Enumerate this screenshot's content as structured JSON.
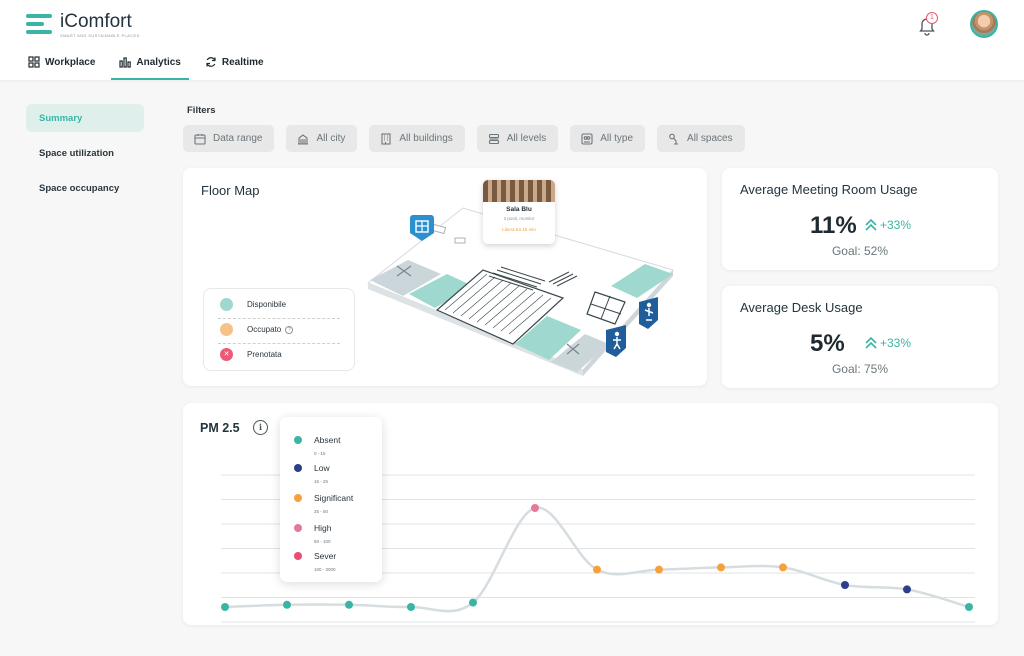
{
  "app": {
    "title": "iComfort",
    "subtitle": "Smart and sustainable places"
  },
  "nav": {
    "tabs": [
      "Workplace",
      "Analytics",
      "Realtime"
    ],
    "active": "Analytics"
  },
  "notifications": {
    "count": "1"
  },
  "sidebar": {
    "items": [
      "Summary",
      "Space utilization",
      "Space occupancy"
    ],
    "active": "Summary"
  },
  "filters": {
    "label": "Filters",
    "chips": [
      "Data range",
      "All city",
      "All buildings",
      "All levels",
      "All type",
      "All spaces"
    ]
  },
  "floor_map": {
    "title": "Floor Map",
    "legend": [
      {
        "label": "Disponibile",
        "color": "#9fd8cf"
      },
      {
        "label": "Occupato",
        "color": "#f6c28a",
        "help": "?"
      },
      {
        "label": "Prenotata",
        "color": "#ec5a78",
        "mark": "✕"
      }
    ],
    "popup": {
      "name": "Sala Blu",
      "details": "3 posti, monitor",
      "status": "Libera tra 15 min"
    }
  },
  "kpis": [
    {
      "title": "Average Meeting Room Usage",
      "value": "11%",
      "trend": "+33%",
      "goal": "Goal: 52%"
    },
    {
      "title": "Average Desk Usage",
      "value": "5%",
      "trend": "+33%",
      "goal": "Goal: 75%"
    }
  ],
  "colors": {
    "accent": "#3ab5a5",
    "absent": "#3ab5a5",
    "low": "#2d3e8c",
    "significant": "#f6a13d",
    "high": "#e57a98",
    "sever": "#ec4c72"
  },
  "pm25": {
    "title": "PM 2.5",
    "info": "i",
    "legend": [
      {
        "label": "Absent",
        "range": "0 - 15",
        "color": "#3ab5a5"
      },
      {
        "label": "Low",
        "range": "16 - 25",
        "color": "#2d3e8c"
      },
      {
        "label": "Significant",
        "range": "25 - 50",
        "color": "#f6a13d"
      },
      {
        "label": "High",
        "range": "50 - 100",
        "color": "#e57a98"
      },
      {
        "label": "Sever",
        "range": "100 - 3000",
        "color": "#ec4c72"
      }
    ]
  },
  "chart_data": {
    "type": "line",
    "title": "PM 2.5",
    "x": [
      1,
      2,
      3,
      4,
      5,
      6,
      7,
      8,
      9,
      10,
      11,
      12,
      13
    ],
    "series": [
      {
        "values": [
          10,
          11,
          11,
          10,
          12,
          55,
          27,
          27,
          28,
          28,
          20,
          18,
          10
        ],
        "levels": [
          "absent",
          "absent",
          "absent",
          "absent",
          "absent",
          "high",
          "significant",
          "significant",
          "significant",
          "significant",
          "low",
          "low",
          "absent"
        ]
      }
    ],
    "ylim": [
      0,
      70
    ],
    "grid": true,
    "xlabel": "",
    "ylabel": ""
  }
}
